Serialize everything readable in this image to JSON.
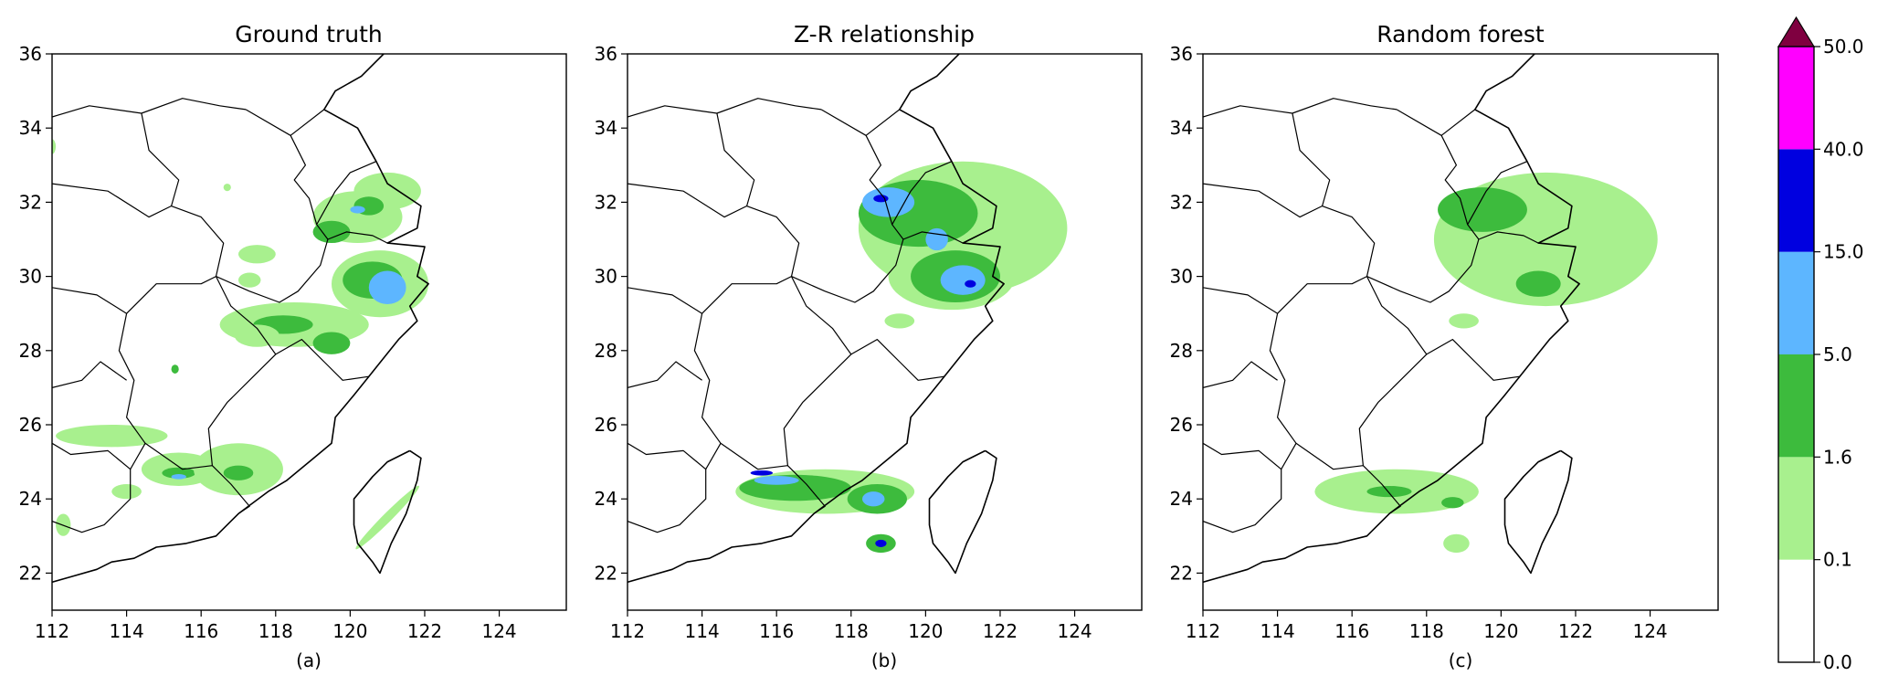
{
  "panels": [
    {
      "title": "Ground truth",
      "sublabel": "(a)",
      "blobs": [
        {
          "lon": 120.2,
          "lat": 31.6,
          "rx": 1.2,
          "ry": 0.7,
          "cls": 1
        },
        {
          "lon": 121.0,
          "lat": 32.3,
          "rx": 0.9,
          "ry": 0.5,
          "cls": 1
        },
        {
          "lon": 119.5,
          "lat": 31.2,
          "rx": 0.5,
          "ry": 0.3,
          "cls": 2
        },
        {
          "lon": 120.5,
          "lat": 31.9,
          "rx": 0.4,
          "ry": 0.25,
          "cls": 2
        },
        {
          "lon": 120.2,
          "lat": 31.8,
          "rx": 0.2,
          "ry": 0.1,
          "cls": 3
        },
        {
          "lon": 120.8,
          "lat": 29.8,
          "rx": 1.3,
          "ry": 0.9,
          "cls": 1
        },
        {
          "lon": 120.6,
          "lat": 29.9,
          "rx": 0.8,
          "ry": 0.5,
          "cls": 2
        },
        {
          "lon": 121.0,
          "lat": 29.7,
          "rx": 0.5,
          "ry": 0.45,
          "cls": 3
        },
        {
          "lon": 118.5,
          "lat": 28.7,
          "rx": 2.0,
          "ry": 0.6,
          "cls": 1
        },
        {
          "lon": 118.2,
          "lat": 28.7,
          "rx": 0.8,
          "ry": 0.25,
          "cls": 2
        },
        {
          "lon": 119.5,
          "lat": 28.2,
          "rx": 0.5,
          "ry": 0.3,
          "cls": 2
        },
        {
          "lon": 117.5,
          "lat": 28.4,
          "rx": 0.6,
          "ry": 0.3,
          "cls": 1
        },
        {
          "lon": 113.6,
          "lat": 25.7,
          "rx": 1.5,
          "ry": 0.3,
          "cls": 1
        },
        {
          "lon": 115.4,
          "lat": 24.8,
          "rx": 1.0,
          "ry": 0.45,
          "cls": 1
        },
        {
          "lon": 115.4,
          "lat": 24.7,
          "rx": 0.45,
          "ry": 0.15,
          "cls": 2
        },
        {
          "lon": 115.4,
          "lat": 24.6,
          "rx": 0.2,
          "ry": 0.07,
          "cls": 3
        },
        {
          "lon": 117.0,
          "lat": 24.8,
          "rx": 1.2,
          "ry": 0.7,
          "cls": 1
        },
        {
          "lon": 117.0,
          "lat": 24.7,
          "rx": 0.4,
          "ry": 0.2,
          "cls": 2
        },
        {
          "lon": 114.0,
          "lat": 24.2,
          "rx": 0.4,
          "ry": 0.2,
          "cls": 1
        },
        {
          "lon": 112.3,
          "lat": 23.3,
          "rx": 0.2,
          "ry": 0.3,
          "cls": 1
        },
        {
          "lon": 115.3,
          "lat": 27.5,
          "rx": 0.1,
          "ry": 0.12,
          "cls": 2
        },
        {
          "lon": 121.0,
          "lat": 23.5,
          "rx": 1.2,
          "ry": 0.12,
          "cls": 1,
          "rot": -45
        },
        {
          "lon": 117.5,
          "lat": 30.6,
          "rx": 0.5,
          "ry": 0.25,
          "cls": 1
        },
        {
          "lon": 116.7,
          "lat": 32.4,
          "rx": 0.1,
          "ry": 0.1,
          "cls": 1
        },
        {
          "lon": 112.0,
          "lat": 33.5,
          "rx": 0.1,
          "ry": 0.2,
          "cls": 1
        },
        {
          "lon": 117.3,
          "lat": 29.9,
          "rx": 0.3,
          "ry": 0.2,
          "cls": 1
        }
      ]
    },
    {
      "title": "Z-R relationship",
      "sublabel": "(b)",
      "blobs": [
        {
          "lon": 121.0,
          "lat": 31.3,
          "rx": 2.8,
          "ry": 1.8,
          "cls": 1
        },
        {
          "lon": 120.7,
          "lat": 30.0,
          "rx": 1.7,
          "ry": 0.9,
          "cls": 1
        },
        {
          "lon": 119.8,
          "lat": 31.7,
          "rx": 1.6,
          "ry": 0.9,
          "cls": 2
        },
        {
          "lon": 120.8,
          "lat": 30.0,
          "rx": 1.2,
          "ry": 0.7,
          "cls": 2
        },
        {
          "lon": 119.0,
          "lat": 32.0,
          "rx": 0.7,
          "ry": 0.4,
          "cls": 3
        },
        {
          "lon": 121.0,
          "lat": 29.9,
          "rx": 0.6,
          "ry": 0.4,
          "cls": 3
        },
        {
          "lon": 120.3,
          "lat": 31.0,
          "rx": 0.3,
          "ry": 0.3,
          "cls": 3
        },
        {
          "lon": 118.8,
          "lat": 32.1,
          "rx": 0.2,
          "ry": 0.1,
          "cls": 4
        },
        {
          "lon": 121.2,
          "lat": 29.8,
          "rx": 0.15,
          "ry": 0.1,
          "cls": 4
        },
        {
          "lon": 119.3,
          "lat": 28.8,
          "rx": 0.4,
          "ry": 0.2,
          "cls": 1
        },
        {
          "lon": 117.3,
          "lat": 24.2,
          "rx": 2.4,
          "ry": 0.6,
          "cls": 1
        },
        {
          "lon": 116.5,
          "lat": 24.3,
          "rx": 1.5,
          "ry": 0.35,
          "cls": 2
        },
        {
          "lon": 118.7,
          "lat": 24.0,
          "rx": 0.8,
          "ry": 0.4,
          "cls": 2
        },
        {
          "lon": 116.0,
          "lat": 24.5,
          "rx": 0.6,
          "ry": 0.12,
          "cls": 3
        },
        {
          "lon": 118.6,
          "lat": 24.0,
          "rx": 0.3,
          "ry": 0.2,
          "cls": 3
        },
        {
          "lon": 115.6,
          "lat": 24.7,
          "rx": 0.3,
          "ry": 0.07,
          "cls": 4
        },
        {
          "lon": 118.8,
          "lat": 22.8,
          "rx": 0.4,
          "ry": 0.25,
          "cls": 2
        },
        {
          "lon": 118.8,
          "lat": 22.8,
          "rx": 0.15,
          "ry": 0.1,
          "cls": 4
        }
      ]
    },
    {
      "title": "Random forest",
      "sublabel": "(c)",
      "blobs": [
        {
          "lon": 121.2,
          "lat": 31.0,
          "rx": 3.0,
          "ry": 1.8,
          "cls": 1
        },
        {
          "lon": 119.5,
          "lat": 31.8,
          "rx": 1.2,
          "ry": 0.6,
          "cls": 2
        },
        {
          "lon": 121.0,
          "lat": 29.8,
          "rx": 0.6,
          "ry": 0.35,
          "cls": 2
        },
        {
          "lon": 119.0,
          "lat": 28.8,
          "rx": 0.4,
          "ry": 0.2,
          "cls": 1
        },
        {
          "lon": 117.2,
          "lat": 24.2,
          "rx": 2.2,
          "ry": 0.6,
          "cls": 1
        },
        {
          "lon": 117.0,
          "lat": 24.2,
          "rx": 0.6,
          "ry": 0.15,
          "cls": 2
        },
        {
          "lon": 118.7,
          "lat": 23.9,
          "rx": 0.3,
          "ry": 0.15,
          "cls": 2
        },
        {
          "lon": 118.8,
          "lat": 22.8,
          "rx": 0.35,
          "ry": 0.25,
          "cls": 1
        }
      ]
    }
  ],
  "x_ticks": [
    "112",
    "114",
    "116",
    "118",
    "120",
    "122",
    "124"
  ],
  "y_ticks": [
    "22",
    "24",
    "26",
    "28",
    "30",
    "32",
    "34",
    "36"
  ],
  "x_range": [
    112,
    125.8
  ],
  "y_range": [
    21,
    36
  ],
  "colorbar": {
    "boundaries": [
      "0.0",
      "0.1",
      "1.6",
      "5.0",
      "15.0",
      "40.0",
      "50.0"
    ],
    "colors": [
      "#ffffff",
      "#a8f08e",
      "#3dbb3d",
      "#5db6ff",
      "#0000e0",
      "#ff00ff"
    ],
    "extend_color": "#7f0040"
  }
}
